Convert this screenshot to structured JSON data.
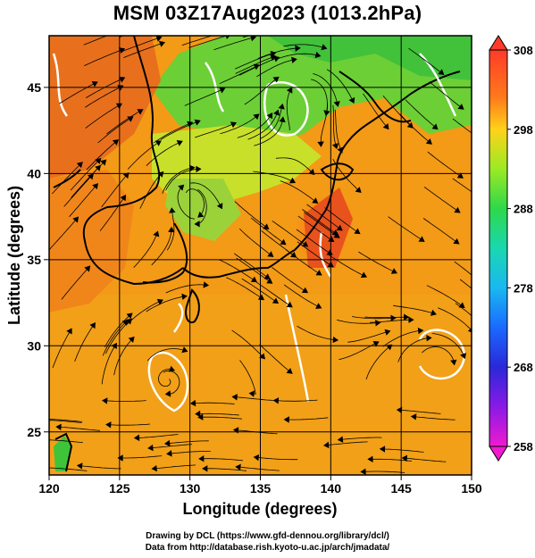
{
  "title": "MSM 03Z17Aug2023 (1013.2hPa)",
  "map": {
    "lon_range": [
      120,
      150
    ],
    "lat_range": [
      22.5,
      48
    ],
    "x_ticks": [
      "120",
      "125",
      "130",
      "135",
      "140",
      "145",
      "150"
    ],
    "x_tick_values": [
      120,
      125,
      130,
      135,
      140,
      145,
      150
    ],
    "y_ticks": [
      "25",
      "30",
      "35",
      "40",
      "45"
    ],
    "y_tick_values": [
      25,
      30,
      35,
      40,
      45
    ],
    "xlabel": "Longitude (degrees)",
    "ylabel": "Latitude  (degrees)",
    "grid": true
  },
  "colorbar": {
    "labels": [
      "308",
      "298",
      "288",
      "278",
      "268",
      "258"
    ],
    "values": [
      308,
      298,
      288,
      278,
      268,
      258
    ],
    "range": [
      258,
      308
    ],
    "colors": [
      "#ff2a2a",
      "#ff8a1a",
      "#ffd21a",
      "#e8ff1a",
      "#4cde3a",
      "#1ad98a",
      "#1acde8",
      "#1a8aff",
      "#2a2ae6",
      "#8a1ae6",
      "#e61ad2"
    ]
  },
  "credit": {
    "line1": "Drawing by DCL (https://www.gfd-dennou.org/library/dcl/)",
    "line2": "Data from http://database.rish.kyoto-u.ac.jp/arch/jmadata/"
  }
}
